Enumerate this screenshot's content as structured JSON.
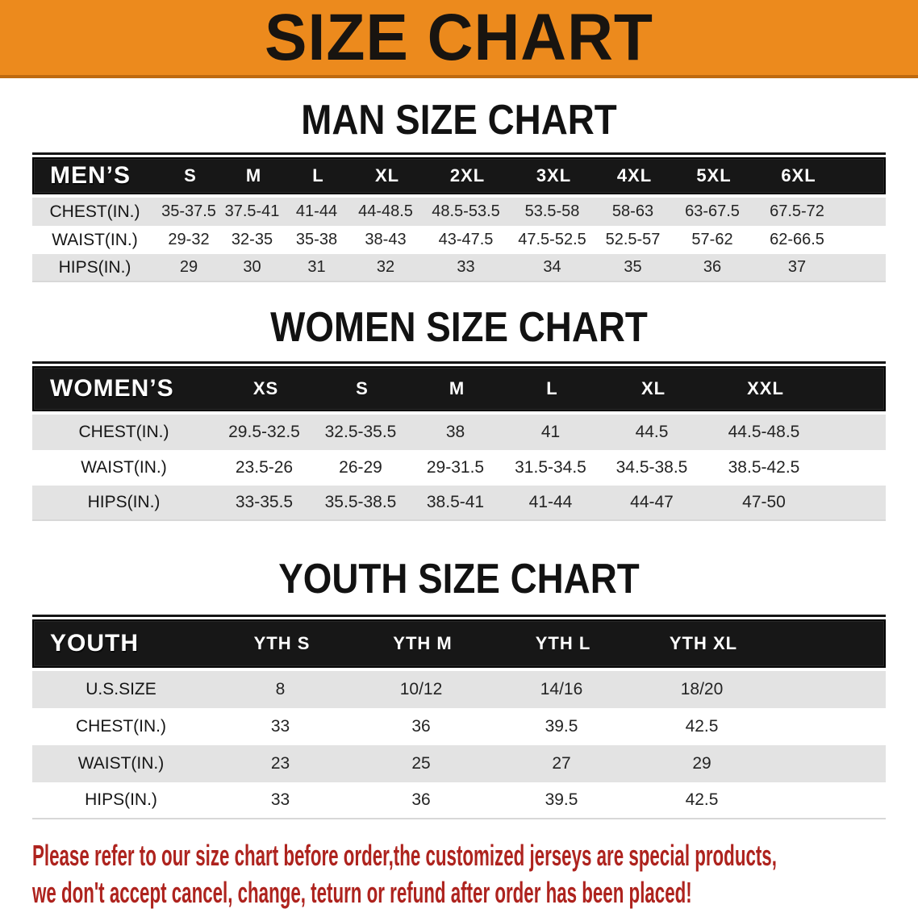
{
  "banner": {
    "title": "SIZE CHART"
  },
  "colors": {
    "banner_orange": "#EC8A1D",
    "banner_edge": "#BE6A10",
    "header_bar": "#171717",
    "stripe_gray": "#E3E3E3",
    "disclaimer_red": "#AE231E"
  },
  "sections": {
    "men": {
      "heading": "MAN SIZE CHART",
      "header_label": "MEN’S",
      "columns": [
        "S",
        "M",
        "L",
        "XL",
        "2XL",
        "3XL",
        "4XL",
        "5XL",
        "6XL"
      ],
      "rows": [
        {
          "label": "CHEST(IN.)",
          "values": [
            "35-37.5",
            "37.5-41",
            "41-44",
            "44-48.5",
            "48.5-53.5",
            "53.5-58",
            "58-63",
            "63-67.5",
            "67.5-72"
          ]
        },
        {
          "label": "WAIST(IN.)",
          "values": [
            "29-32",
            "32-35",
            "35-38",
            "38-43",
            "43-47.5",
            "47.5-52.5",
            "52.5-57",
            "57-62",
            "62-66.5"
          ]
        },
        {
          "label": "HIPS(IN.)",
          "values": [
            "29",
            "30",
            "31",
            "32",
            "33",
            "34",
            "35",
            "36",
            "37"
          ]
        }
      ]
    },
    "women": {
      "heading": "WOMEN SIZE CHART",
      "header_label": "WOMEN’S",
      "columns": [
        "XS",
        "S",
        "M",
        "L",
        "XL",
        "XXL"
      ],
      "rows": [
        {
          "label": "CHEST(IN.)",
          "values": [
            "29.5-32.5",
            "32.5-35.5",
            "38",
            "41",
            "44.5",
            "44.5-48.5"
          ]
        },
        {
          "label": "WAIST(IN.)",
          "values": [
            "23.5-26",
            "26-29",
            "29-31.5",
            "31.5-34.5",
            "34.5-38.5",
            "38.5-42.5"
          ]
        },
        {
          "label": "HIPS(IN.)",
          "values": [
            "33-35.5",
            "35.5-38.5",
            "38.5-41",
            "41-44",
            "44-47",
            "47-50"
          ]
        }
      ]
    },
    "youth": {
      "heading": "YOUTH SIZE CHART",
      "header_label": "YOUTH",
      "columns": [
        "YTH S",
        "YTH M",
        "YTH L",
        "YTH XL"
      ],
      "rows": [
        {
          "label": "U.S.SIZE",
          "values": [
            "8",
            "10/12",
            "14/16",
            "18/20"
          ]
        },
        {
          "label": "CHEST(IN.)",
          "values": [
            "33",
            "36",
            "39.5",
            "42.5"
          ]
        },
        {
          "label": "WAIST(IN.)",
          "values": [
            "23",
            "25",
            "27",
            "29"
          ]
        },
        {
          "label": "HIPS(IN.)",
          "values": [
            "33",
            "36",
            "39.5",
            "42.5"
          ]
        }
      ]
    }
  },
  "disclaimer": {
    "line1": "Please refer to our size chart before order,the customized jerseys are special products,",
    "line2": "we don't accept cancel, change, teturn or refund after order has been placed!"
  }
}
